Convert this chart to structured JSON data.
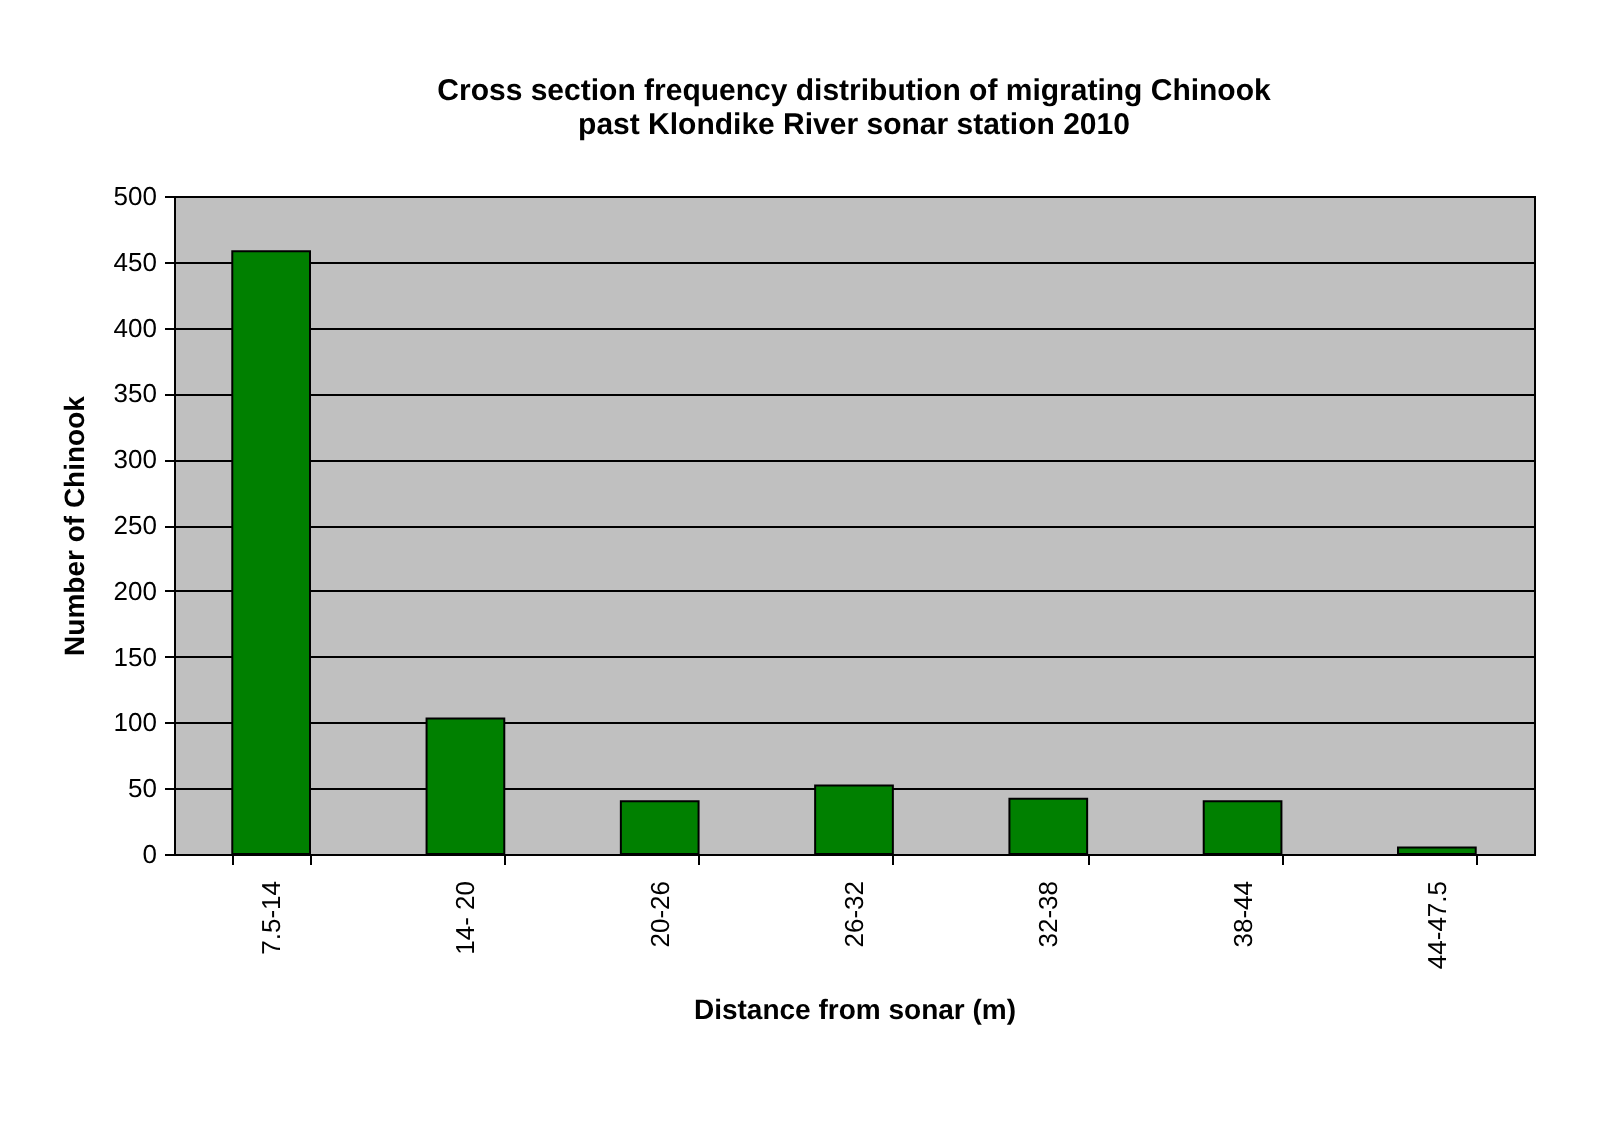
{
  "chart_data": {
    "type": "bar",
    "title": [
      "Cross section frequency distribution of migrating Chinook",
      "past Klondike River sonar station 2010"
    ],
    "xlabel": "Distance from sonar (m)",
    "ylabel": "Number of Chinook",
    "categories": [
      "7.5-14",
      "14- 20",
      "20-26",
      "26-32",
      "32-38",
      "38-44",
      "44-47.5"
    ],
    "values": [
      458,
      103,
      40,
      52,
      42,
      40,
      5
    ],
    "color": "#008000",
    "ylim": [
      0,
      500
    ],
    "yticks": [
      0,
      50,
      100,
      150,
      200,
      250,
      300,
      350,
      400,
      450,
      500
    ],
    "grid": "y",
    "legend": false
  }
}
